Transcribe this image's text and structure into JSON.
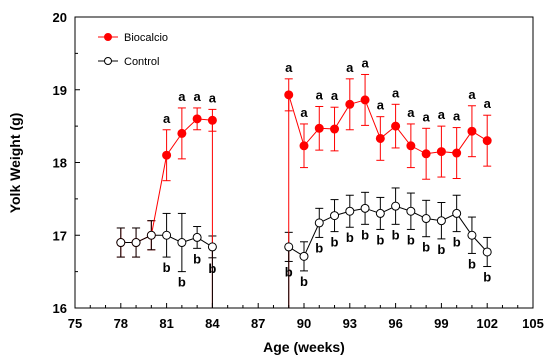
{
  "chart_data": {
    "type": "line",
    "xlabel": "Age (weeks)",
    "ylabel": "Yolk Weight (g)",
    "xlim": [
      75,
      105
    ],
    "ylim": [
      16,
      20
    ],
    "xticks": [
      "75",
      "78",
      "81",
      "84",
      "87",
      "90",
      "93",
      "96",
      "99",
      "102",
      "105"
    ],
    "yticks": [
      "16",
      "17",
      "18",
      "19",
      "20"
    ],
    "grid": false,
    "legend_position": "top-left",
    "series": [
      {
        "name": "Biocalcio",
        "color": "#ff0000",
        "marker": "filled-circle",
        "segments": [
          {
            "x": [
              78,
              79,
              80,
              81,
              82,
              83,
              84
            ],
            "y": [
              16.9,
              16.9,
              17.0,
              18.1,
              18.4,
              18.6,
              18.58
            ],
            "err": [
              0.2,
              0.2,
              0.2,
              0.35,
              0.35,
              0.15,
              0.15
            ],
            "labels": [
              "",
              "",
              "",
              "a",
              "a",
              "a",
              "a"
            ]
          },
          {
            "x": [
              89,
              90,
              91,
              92,
              93,
              94,
              95,
              96,
              97,
              98,
              99,
              100,
              101,
              102
            ],
            "y": [
              18.93,
              18.23,
              18.47,
              18.46,
              18.8,
              18.86,
              18.33,
              18.5,
              18.23,
              18.12,
              18.15,
              18.13,
              18.43,
              18.3
            ],
            "err": [
              0.22,
              0.3,
              0.3,
              0.3,
              0.35,
              0.35,
              0.3,
              0.3,
              0.3,
              0.35,
              0.35,
              0.35,
              0.35,
              0.35
            ],
            "labels": [
              "a",
              "a",
              "a",
              "a",
              "a",
              "a",
              "a",
              "a",
              "a",
              "a",
              "a",
              "a",
              "a",
              "a"
            ]
          }
        ]
      },
      {
        "name": "Control",
        "color": "#000000",
        "marker": "open-circle",
        "segments": [
          {
            "x": [
              78,
              79,
              80,
              81,
              82,
              83,
              84
            ],
            "y": [
              16.9,
              16.9,
              17.0,
              17.0,
              16.9,
              16.97,
              16.84
            ],
            "err": [
              0.2,
              0.2,
              0.2,
              0.3,
              0.4,
              0.15,
              0.15
            ],
            "labels": [
              "",
              "",
              "",
              "b",
              "b",
              "b",
              "b"
            ]
          },
          {
            "x": [
              89,
              90,
              91,
              92,
              93,
              94,
              95,
              96,
              97,
              98,
              99,
              100,
              101,
              102
            ],
            "y": [
              16.84,
              16.71,
              17.17,
              17.27,
              17.33,
              17.37,
              17.3,
              17.4,
              17.33,
              17.23,
              17.2,
              17.3,
              17.0,
              16.77
            ],
            "err": [
              0.2,
              0.2,
              0.2,
              0.22,
              0.22,
              0.22,
              0.22,
              0.25,
              0.25,
              0.25,
              0.25,
              0.25,
              0.25,
              0.2
            ],
            "labels": [
              "b",
              "b",
              "b",
              "b",
              "b",
              "b",
              "b",
              "b",
              "b",
              "b",
              "b",
              "b",
              "b",
              "b"
            ]
          }
        ]
      }
    ],
    "drops": [
      {
        "series": "Biocalcio",
        "from": [
          84,
          18.58
        ],
        "to": [
          84,
          16.0
        ]
      },
      {
        "series": "Control",
        "from": [
          84,
          16.84
        ],
        "to": [
          84,
          16.0
        ]
      },
      {
        "series": "Biocalcio",
        "from": [
          89,
          16.0
        ],
        "to": [
          89,
          18.93
        ]
      },
      {
        "series": "Control",
        "from": [
          89,
          16.0
        ],
        "to": [
          89,
          16.84
        ]
      }
    ]
  }
}
